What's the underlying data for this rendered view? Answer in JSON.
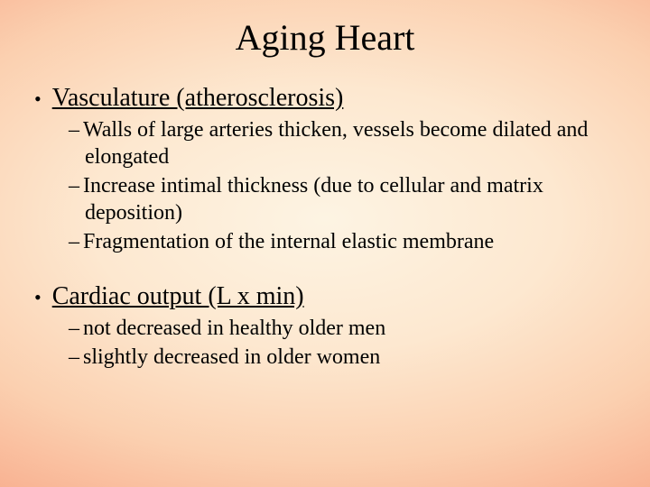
{
  "slide": {
    "title": "Aging Heart",
    "title_fontsize": 40,
    "heading_fontsize": 28,
    "sub_fontsize": 24,
    "text_color": "#000000",
    "background_gradient": {
      "type": "radial",
      "stops": [
        "#fdf4e3",
        "#fde8d0",
        "#fbd0b0",
        "#f8ac8c",
        "#f48a72"
      ]
    },
    "sections": [
      {
        "heading": "Vasculature (atherosclerosis)",
        "items": [
          "Walls of large arteries thicken, vessels become dilated and elongated",
          "Increase intimal thickness (due to cellular and matrix deposition)",
          "Fragmentation of the internal elastic membrane"
        ]
      },
      {
        "heading": "Cardiac output (L x min)",
        "items": [
          "not decreased in healthy older men",
          "slightly decreased in older women"
        ]
      }
    ]
  }
}
